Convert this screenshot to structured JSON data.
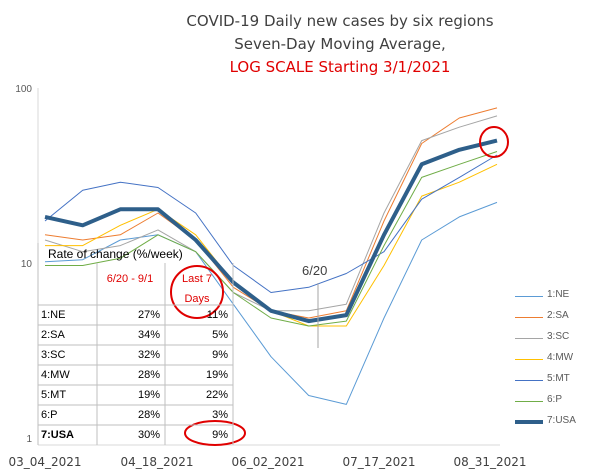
{
  "chart_data": {
    "type": "line",
    "title": [
      "COVID-19 Daily new cases by six regions",
      "Seven-Day Moving Average,",
      "LOG SCALE Starting 3/1/2021"
    ],
    "y_scale": "log",
    "ylim": [
      1,
      100
    ],
    "y_ticks": [
      "100",
      "10",
      "1"
    ],
    "x_ticks": [
      "03_04_2021",
      "04_18_2021",
      "06_02_2021",
      "07_17_2021",
      "08_31_2021"
    ],
    "grid": "off",
    "legend_position": "right",
    "annotation": "6/20",
    "x": [
      "03_04_2021",
      "03_19_2021",
      "04_03_2021",
      "04_18_2021",
      "05_03_2021",
      "05_18_2021",
      "06_02_2021",
      "06_20_2021",
      "07_02_2021",
      "07_17_2021",
      "08_01_2021",
      "08_16_2021",
      "08_31_2021"
    ],
    "series": [
      {
        "name": "1:NE",
        "color": "#5b9bd5",
        "values": [
          10.5,
          10.8,
          14,
          15,
          12,
          6,
          3.0,
          1.8,
          1.6,
          5,
          14,
          19,
          23
        ]
      },
      {
        "name": "2:SA",
        "color": "#ed7d31",
        "values": [
          15,
          14,
          15,
          20,
          14,
          7.5,
          5.5,
          5,
          5.5,
          18,
          50,
          70,
          80
        ]
      },
      {
        "name": "3:SC",
        "color": "#a5a5a5",
        "values": [
          14,
          12,
          13,
          16,
          12,
          7,
          5.5,
          5.5,
          6,
          20,
          52,
          62,
          72
        ]
      },
      {
        "name": "4:MW",
        "color": "#ffc000",
        "values": [
          13,
          13,
          17,
          21,
          15,
          8,
          5.5,
          4.5,
          4.5,
          10,
          25,
          30,
          38
        ]
      },
      {
        "name": "5:MT",
        "color": "#4472c4",
        "values": [
          18,
          27,
          30,
          28,
          20,
          10,
          7,
          7.5,
          9,
          12,
          24,
          32,
          43
        ]
      },
      {
        "name": "6:P",
        "color": "#70ad47",
        "values": [
          10,
          10,
          11,
          15,
          12,
          7,
          5,
          4.5,
          4.8,
          13,
          32,
          38,
          45
        ]
      },
      {
        "name": "7:USA",
        "color": "#2e5f8a",
        "values": [
          19,
          17,
          21,
          21,
          14,
          8,
          5.5,
          4.8,
          5.2,
          15,
          38,
          46,
          52
        ]
      }
    ]
  },
  "table": {
    "title": "Rate of change (%/week)",
    "header_col1": "6/20 - 9/1",
    "header_col2": "Last 7 Days",
    "rows": [
      {
        "region": "1:NE",
        "a": "27%",
        "b": "11%"
      },
      {
        "region": "2:SA",
        "a": "34%",
        "b": "5%"
      },
      {
        "region": "3:SC",
        "a": "32%",
        "b": "9%"
      },
      {
        "region": "4:MW",
        "a": "28%",
        "b": "19%"
      },
      {
        "region": "5:MT",
        "a": "19%",
        "b": "22%"
      },
      {
        "region": "6:P",
        "a": "28%",
        "b": "3%"
      },
      {
        "region": "7:USA",
        "a": "30%",
        "b": "9%"
      }
    ]
  }
}
